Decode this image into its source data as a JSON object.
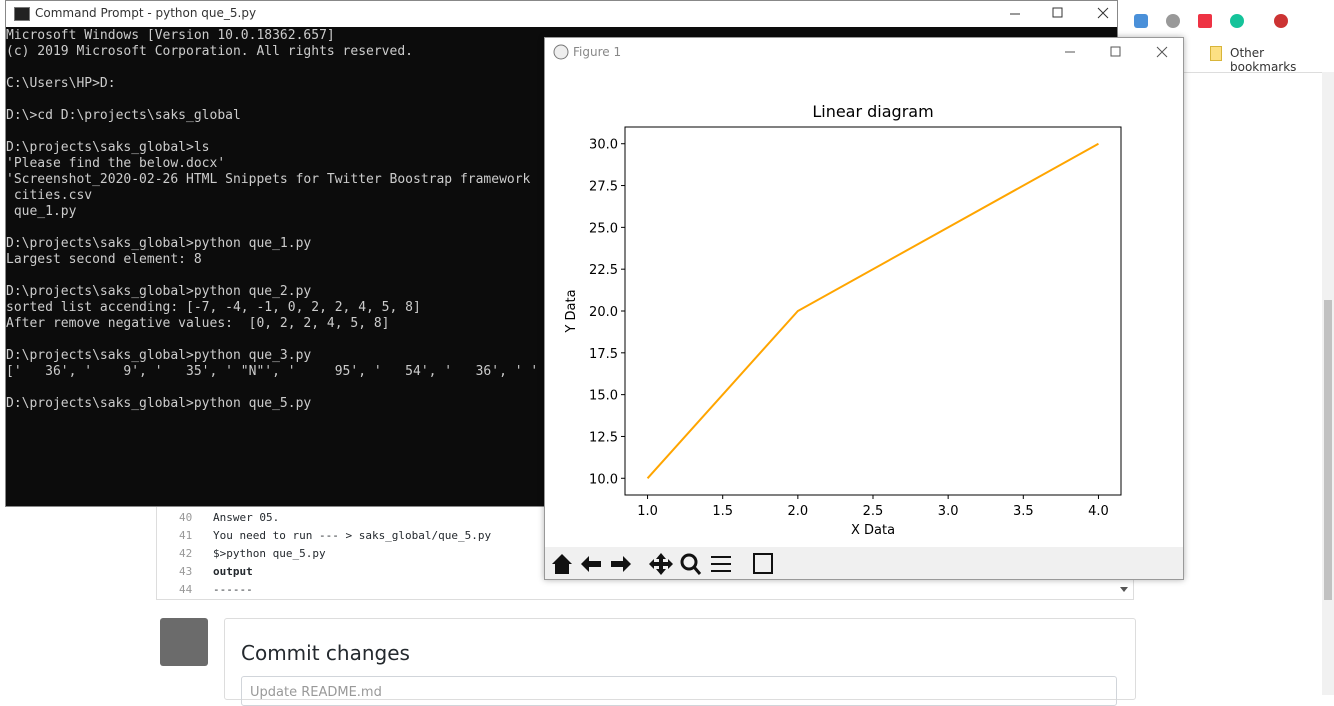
{
  "cmd": {
    "title": "Command Prompt - python  que_5.py",
    "blocks": [
      [
        "Microsoft Windows [Version 10.0.18362.657]",
        "(c) 2019 Microsoft Corporation. All rights reserved."
      ],
      [
        "C:\\Users\\HP>D:"
      ],
      [
        "D:\\>cd D:\\projects\\saks_global"
      ],
      [
        "D:\\projects\\saks_global>ls",
        "'Please find the below.docx'",
        "'Screenshot_2020-02-26 HTML Snippets for Twitter Boostrap framework",
        " cities.csv",
        " que_1.py"
      ],
      [
        "D:\\projects\\saks_global>python que_1.py",
        "Largest second element: 8"
      ],
      [
        "D:\\projects\\saks_global>python que_2.py",
        "sorted list accending: [-7, -4, -1, 0, 2, 2, 4, 5, 8]",
        "After remove negative values:  [0, 2, 2, 4, 5, 8]"
      ],
      [
        "D:\\projects\\saks_global>python que_3.py",
        "['   36', '    9', '   35', ' \"N\"', '     95', '   54', '   36', ' '"
      ],
      [
        "D:\\projects\\saks_global>python que_5.py"
      ]
    ]
  },
  "browser": {
    "bookmarks": "Other bookmarks"
  },
  "editor": {
    "lines": [
      {
        "num": 40,
        "text": "Answer 05."
      },
      {
        "num": 41,
        "text": "You need to run --- > saks_global/que_5.py"
      },
      {
        "num": 42,
        "text": "$>python que_5.py"
      },
      {
        "num": 43,
        "text": "output"
      },
      {
        "num": 44,
        "text": "------"
      }
    ]
  },
  "commit": {
    "title": "Commit changes",
    "placeholder": "Update README.md"
  },
  "figure": {
    "title": "Figure 1"
  },
  "chart_data": {
    "type": "line",
    "title": "Linear diagram",
    "xlabel": "X Data",
    "ylabel": "Y Data",
    "x": [
      1,
      2,
      3,
      4
    ],
    "series": [
      {
        "name": "Y Data",
        "color": "#ffa500",
        "values": [
          10,
          20,
          25,
          30
        ]
      }
    ],
    "xlim": [
      0.85,
      4.15
    ],
    "ylim": [
      9.0,
      31.0
    ],
    "xticks": [
      {
        "value": 1,
        "label": "1.0"
      },
      1.5,
      {
        "value": 2,
        "label": "2.0"
      },
      2.5,
      {
        "value": 3,
        "label": "3.0"
      },
      3.5,
      {
        "value": 4,
        "label": "4.0"
      }
    ],
    "yticks": [
      {
        "value": 10,
        "label": "10.0"
      },
      12.5,
      {
        "value": 15,
        "label": "15.0"
      },
      17.5,
      {
        "value": 20,
        "label": "20.0"
      },
      22.5,
      {
        "value": 25,
        "label": "25.0"
      },
      27.5,
      {
        "value": 30,
        "label": "30.0"
      }
    ],
    "grid": false
  }
}
